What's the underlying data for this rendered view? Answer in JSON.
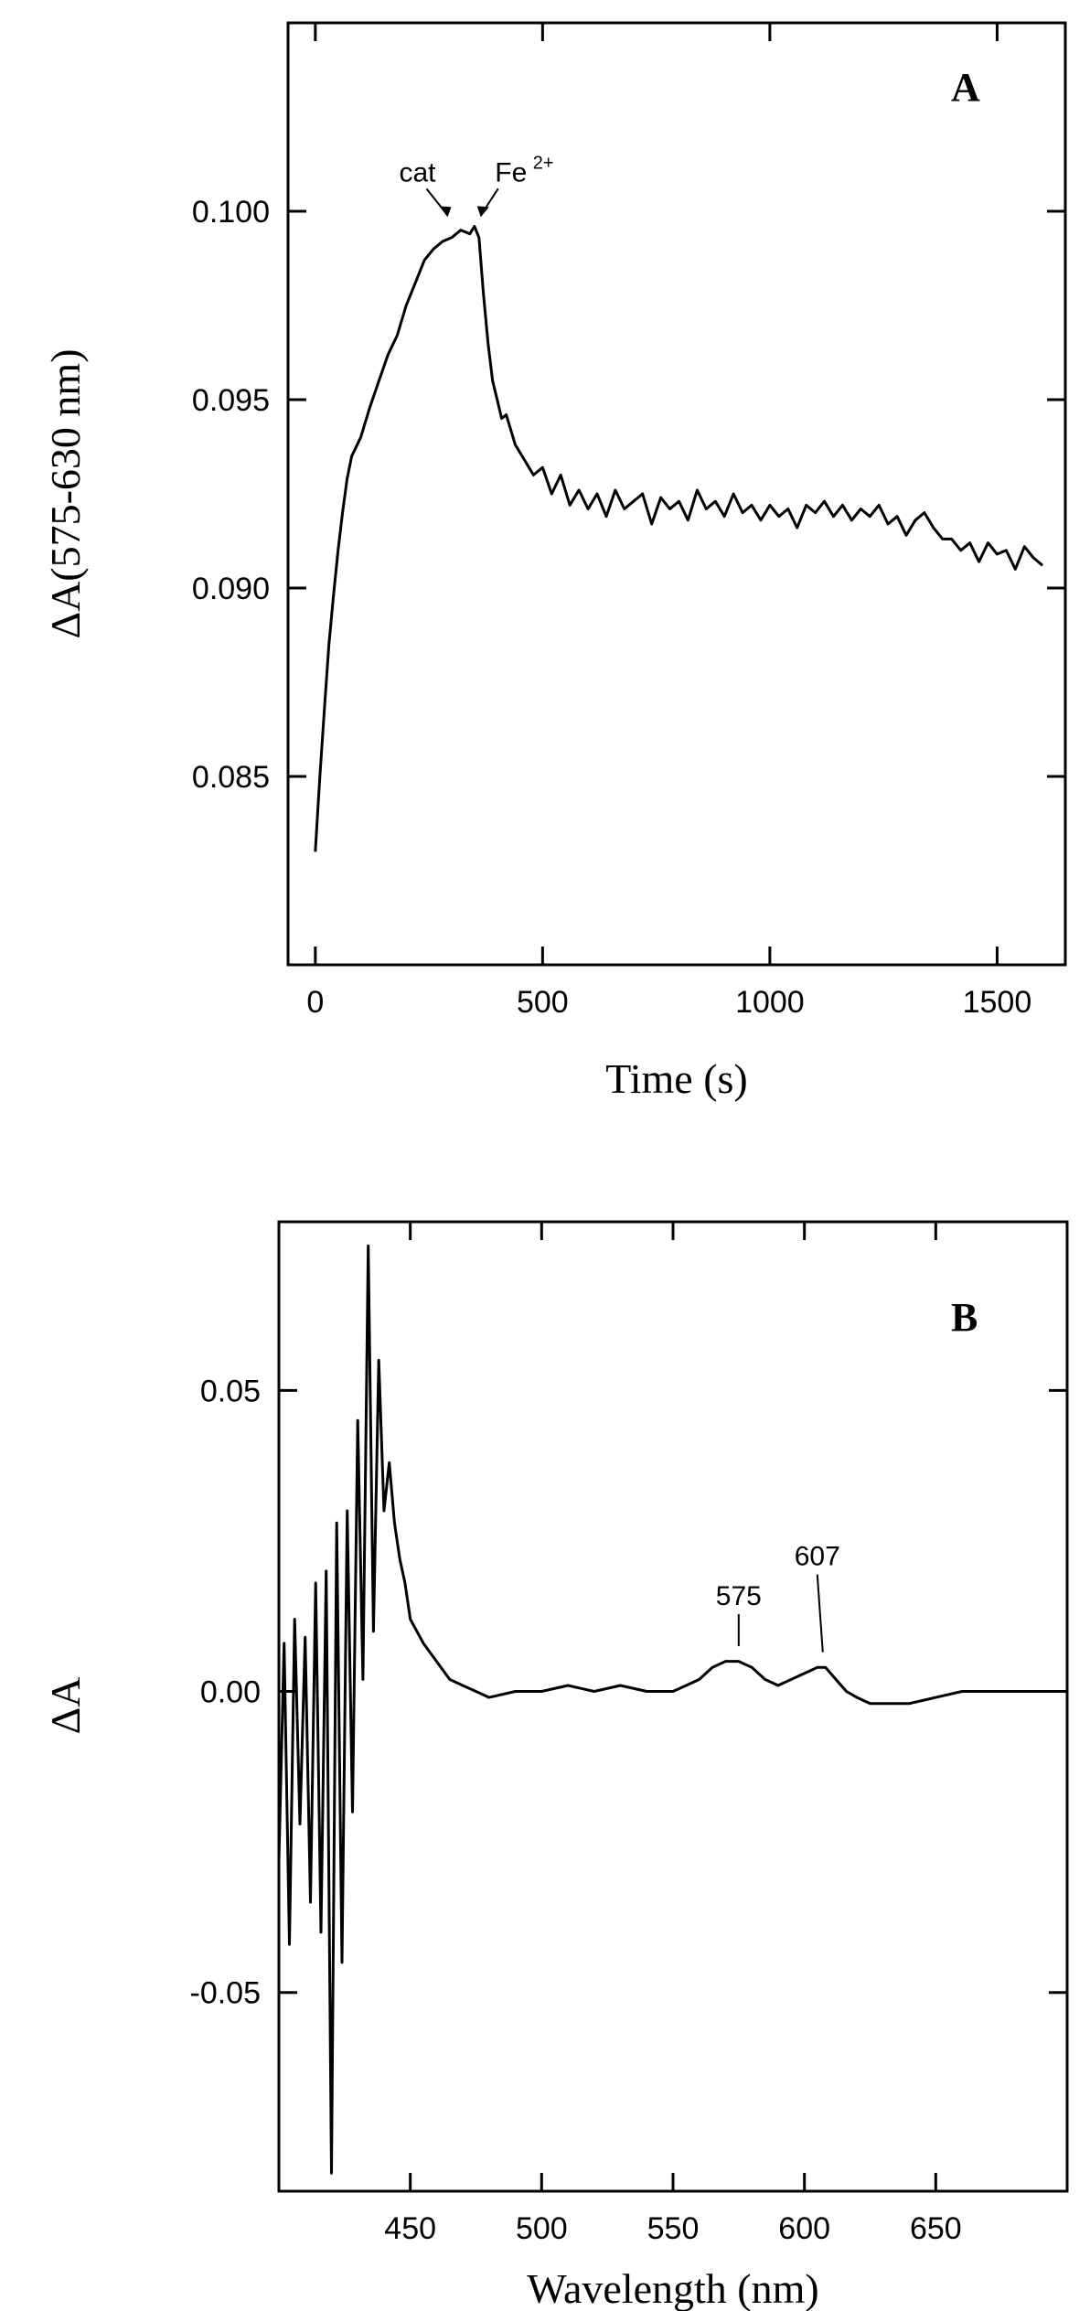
{
  "chart_data": [
    {
      "type": "line",
      "panel_label": "A",
      "xlabel": "Time (s)",
      "ylabel": "ΔA(575-630 nm)",
      "xlim": [
        -60,
        1650
      ],
      "ylim": [
        0.08,
        0.105
      ],
      "xticks": [
        {
          "value": 0,
          "label": "0"
        },
        {
          "value": 500,
          "label": "500"
        },
        {
          "value": 1000,
          "label": "1000"
        },
        {
          "value": 1500,
          "label": "1500"
        }
      ],
      "yticks": [
        {
          "value": 0.085,
          "label": "0.085"
        },
        {
          "value": 0.09,
          "label": "0.090"
        },
        {
          "value": 0.095,
          "label": "0.095"
        },
        {
          "value": 0.1,
          "label": "0.100"
        }
      ],
      "annotations": [
        {
          "text": "cat",
          "sup": "",
          "x": 295,
          "y": 0.0997
        },
        {
          "text": "Fe",
          "sup": "2+",
          "x": 360,
          "y": 0.0997
        }
      ],
      "x": [
        0,
        10,
        20,
        30,
        40,
        50,
        60,
        70,
        80,
        100,
        120,
        140,
        160,
        180,
        200,
        220,
        240,
        260,
        280,
        300,
        320,
        340,
        350,
        360,
        370,
        380,
        390,
        400,
        410,
        420,
        440,
        460,
        480,
        500,
        520,
        540,
        560,
        580,
        600,
        620,
        640,
        660,
        680,
        700,
        720,
        740,
        760,
        780,
        800,
        820,
        840,
        860,
        880,
        900,
        920,
        940,
        960,
        980,
        1000,
        1020,
        1040,
        1060,
        1080,
        1100,
        1120,
        1140,
        1160,
        1180,
        1200,
        1220,
        1240,
        1260,
        1280,
        1300,
        1320,
        1340,
        1360,
        1380,
        1400,
        1420,
        1440,
        1460,
        1480,
        1500,
        1520,
        1540,
        1560,
        1580,
        1600
      ],
      "y": [
        0.083,
        0.085,
        0.0868,
        0.0885,
        0.0898,
        0.091,
        0.092,
        0.0929,
        0.0935,
        0.094,
        0.0948,
        0.0955,
        0.0962,
        0.0967,
        0.0975,
        0.0981,
        0.0987,
        0.099,
        0.0992,
        0.0993,
        0.0995,
        0.0994,
        0.0996,
        0.0993,
        0.0978,
        0.0965,
        0.0955,
        0.095,
        0.0945,
        0.0946,
        0.0938,
        0.0934,
        0.093,
        0.0932,
        0.0925,
        0.093,
        0.0922,
        0.0926,
        0.0921,
        0.0925,
        0.0919,
        0.0926,
        0.0921,
        0.0923,
        0.0925,
        0.0917,
        0.0924,
        0.0921,
        0.0923,
        0.0918,
        0.0926,
        0.0921,
        0.0923,
        0.0919,
        0.0925,
        0.092,
        0.0922,
        0.0918,
        0.0922,
        0.0919,
        0.0921,
        0.0916,
        0.0922,
        0.092,
        0.0923,
        0.0919,
        0.0922,
        0.0918,
        0.0921,
        0.0919,
        0.0922,
        0.0917,
        0.0919,
        0.0914,
        0.0918,
        0.092,
        0.0916,
        0.0913,
        0.0913,
        0.091,
        0.0912,
        0.0907,
        0.0912,
        0.0909,
        0.091,
        0.0905,
        0.0911,
        0.0908,
        0.0906
      ]
    },
    {
      "type": "line",
      "panel_label": "B",
      "xlabel": "Wavelength (nm)",
      "ylabel": "ΔA",
      "xlim": [
        400,
        700
      ],
      "ylim": [
        -0.083,
        0.078
      ],
      "xticks": [
        {
          "value": 450,
          "label": "450"
        },
        {
          "value": 500,
          "label": "500"
        },
        {
          "value": 550,
          "label": "550"
        },
        {
          "value": 600,
          "label": "600"
        },
        {
          "value": 650,
          "label": "650"
        }
      ],
      "yticks": [
        {
          "value": -0.05,
          "label": "-0.05"
        },
        {
          "value": 0.0,
          "label": "0.00"
        },
        {
          "value": 0.05,
          "label": "0.05"
        }
      ],
      "annotations": [
        {
          "text": "575",
          "x": 575,
          "y": 0.006
        },
        {
          "text": "607",
          "x": 607,
          "y": 0.005
        }
      ],
      "x": [
        400,
        402,
        404,
        406,
        408,
        410,
        412,
        414,
        416,
        418,
        420,
        422,
        424,
        426,
        428,
        430,
        432,
        434,
        436,
        438,
        440,
        442,
        444,
        446,
        448,
        450,
        455,
        460,
        465,
        470,
        475,
        480,
        490,
        500,
        510,
        520,
        530,
        540,
        550,
        555,
        560,
        565,
        570,
        575,
        580,
        585,
        590,
        595,
        600,
        605,
        608,
        612,
        616,
        620,
        625,
        630,
        640,
        650,
        660,
        670,
        680,
        690,
        700
      ],
      "y": [
        -0.028,
        0.008,
        -0.042,
        0.012,
        -0.022,
        0.009,
        -0.035,
        0.018,
        -0.04,
        0.02,
        -0.08,
        0.028,
        -0.045,
        0.03,
        -0.02,
        0.045,
        0.002,
        0.074,
        0.01,
        0.055,
        0.03,
        0.038,
        0.028,
        0.022,
        0.018,
        0.012,
        0.008,
        0.005,
        0.002,
        0.001,
        0.0,
        -0.001,
        0.0,
        0.0,
        0.001,
        0.0,
        0.001,
        0.0,
        0.0,
        0.001,
        0.002,
        0.004,
        0.005,
        0.005,
        0.004,
        0.002,
        0.001,
        0.002,
        0.003,
        0.004,
        0.004,
        0.002,
        0.0,
        -0.001,
        -0.002,
        -0.002,
        -0.002,
        -0.001,
        0.0,
        0.0,
        0.0,
        0.0,
        0.0
      ]
    }
  ]
}
